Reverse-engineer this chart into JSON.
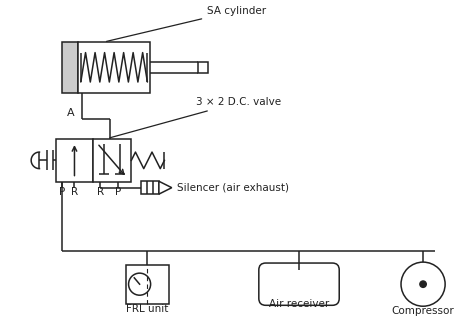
{
  "background_color": "#ffffff",
  "line_color": "#222222",
  "text_color": "#222222",
  "fig_width": 4.74,
  "fig_height": 3.23,
  "dpi": 100,
  "labels": {
    "sa_cylinder": "SA cylinder",
    "dc_valve": "3 × 2 D.C. valve",
    "silencer": "Silencer (air exhaust)",
    "frl": "FRL unit",
    "air_receiver": "Air receiver",
    "compressor": "Compressor",
    "port_A": "A",
    "port_P1": "P",
    "port_R1": "R",
    "port_R2": "R",
    "port_P2": "P"
  }
}
